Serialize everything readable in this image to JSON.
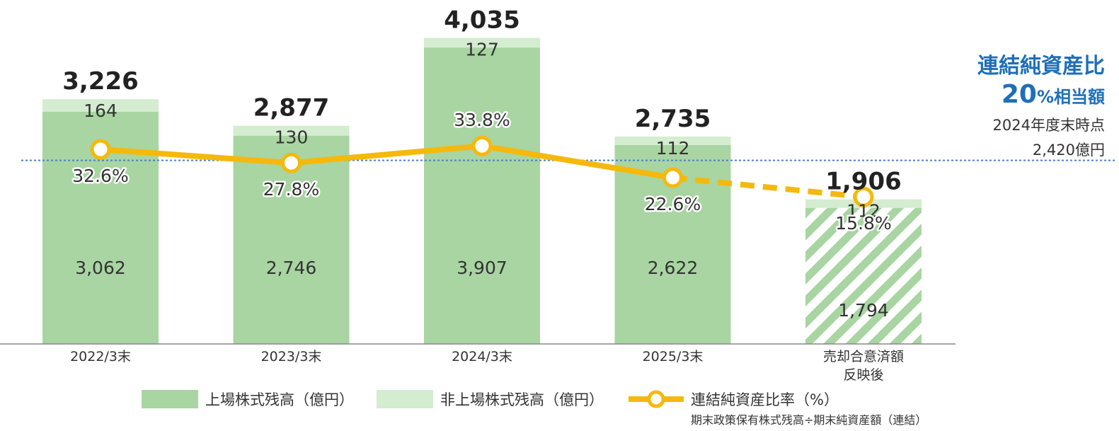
{
  "chart_data": {
    "type": "bar",
    "categories": [
      "2022/3末",
      "2023/3末",
      "2024/3末",
      "2025/3末",
      "売却合意済額\n反映後"
    ],
    "totals": [
      "3,226",
      "2,877",
      "4,035",
      "2,735",
      "1,906"
    ],
    "series": [
      {
        "name": "上場株式残高（億円）",
        "values": [
          3062,
          2746,
          3907,
          2622,
          1794
        ],
        "labels": [
          "3,062",
          "2,746",
          "3,907",
          "2,622",
          "1,794"
        ],
        "color": "#a8d5a2"
      },
      {
        "name": "非上場株式残高（億円）",
        "values": [
          164,
          130,
          127,
          112,
          112
        ],
        "labels": [
          "164",
          "130",
          "127",
          "112",
          "112"
        ],
        "color": "#d4ecd0"
      },
      {
        "name": "連結純資産比率（%）",
        "values": [
          32.6,
          27.8,
          33.8,
          22.6,
          15.8
        ],
        "labels": [
          "32.6%",
          "27.8%",
          "33.8%",
          "22.6%",
          "15.8%"
        ],
        "color": "#f5b90c",
        "axis": "secondary"
      }
    ],
    "reference_line": {
      "value": 2420,
      "color": "#4a7fc8"
    },
    "projected_index": 4,
    "grid": false
  },
  "reference_label": {
    "title": "連結純資産比",
    "amount_number": "20",
    "amount_suffix": "%相当額",
    "note_line1": "2024年度末時点",
    "note_line2": "2,420億円"
  },
  "legend": {
    "listed": "上場株式残高（億円）",
    "unlisted": "非上場株式残高（億円）",
    "ratio": "連結純資産比率（%）",
    "ratio_note": "期末政策保有株式残高÷期末純資産額（連結）"
  },
  "colors": {
    "listed": "#a8d5a2",
    "unlisted": "#d4ecd0",
    "line": "#f5b90c",
    "reference": "#4a7fc8",
    "accent_text": "#1f6fb8"
  }
}
